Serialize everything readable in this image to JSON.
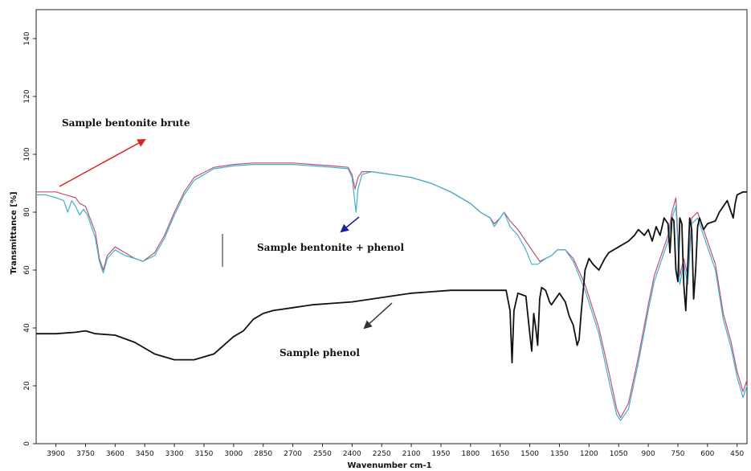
{
  "chart_data": {
    "type": "line",
    "title": "",
    "xlabel": "Wavenumber cm-1",
    "ylabel": "Transmittance [%]",
    "xlim": [
      4000,
      400
    ],
    "ylim": [
      0,
      150
    ],
    "x_ticks": [
      3900,
      3750,
      3600,
      3450,
      3300,
      3150,
      3000,
      2850,
      2700,
      2550,
      2400,
      2250,
      2100,
      1950,
      1800,
      1650,
      1500,
      1350,
      1200,
      1050,
      900,
      750,
      600,
      450
    ],
    "y_ticks": [
      0,
      20,
      40,
      60,
      80,
      100,
      120,
      140
    ],
    "grid": false,
    "series": [
      {
        "name": "Sample bentonite brute",
        "color": "#c0507a",
        "points": [
          [
            4000,
            87
          ],
          [
            3950,
            87
          ],
          [
            3900,
            87
          ],
          [
            3850,
            86
          ],
          [
            3800,
            85
          ],
          [
            3780,
            83
          ],
          [
            3750,
            82
          ],
          [
            3700,
            73
          ],
          [
            3680,
            64
          ],
          [
            3660,
            60
          ],
          [
            3640,
            65
          ],
          [
            3600,
            68
          ],
          [
            3550,
            66
          ],
          [
            3500,
            64
          ],
          [
            3460,
            63
          ],
          [
            3400,
            66
          ],
          [
            3350,
            72
          ],
          [
            3300,
            80
          ],
          [
            3250,
            87
          ],
          [
            3200,
            92
          ],
          [
            3100,
            95.5
          ],
          [
            3000,
            96.5
          ],
          [
            2900,
            97
          ],
          [
            2800,
            97
          ],
          [
            2700,
            97
          ],
          [
            2600,
            96.5
          ],
          [
            2500,
            96
          ],
          [
            2420,
            95.5
          ],
          [
            2400,
            93
          ],
          [
            2385,
            88
          ],
          [
            2370,
            92
          ],
          [
            2350,
            94
          ],
          [
            2300,
            94
          ],
          [
            2200,
            93
          ],
          [
            2100,
            92
          ],
          [
            2000,
            90
          ],
          [
            1900,
            87
          ],
          [
            1800,
            83
          ],
          [
            1750,
            80
          ],
          [
            1700,
            78
          ],
          [
            1680,
            76
          ],
          [
            1650,
            78
          ],
          [
            1630,
            80
          ],
          [
            1600,
            77
          ],
          [
            1560,
            74
          ],
          [
            1520,
            70
          ],
          [
            1480,
            66
          ],
          [
            1450,
            63
          ],
          [
            1420,
            64
          ],
          [
            1390,
            65
          ],
          [
            1360,
            67
          ],
          [
            1320,
            67
          ],
          [
            1280,
            64
          ],
          [
            1220,
            55
          ],
          [
            1150,
            40
          ],
          [
            1100,
            25
          ],
          [
            1060,
            12
          ],
          [
            1040,
            9
          ],
          [
            1000,
            14
          ],
          [
            950,
            30
          ],
          [
            900,
            48
          ],
          [
            870,
            58
          ],
          [
            840,
            64
          ],
          [
            800,
            72
          ],
          [
            780,
            80
          ],
          [
            760,
            85
          ],
          [
            740,
            58
          ],
          [
            720,
            64
          ],
          [
            700,
            58
          ],
          [
            680,
            78
          ],
          [
            650,
            80
          ],
          [
            620,
            74
          ],
          [
            600,
            70
          ],
          [
            560,
            62
          ],
          [
            520,
            45
          ],
          [
            480,
            35
          ],
          [
            450,
            25
          ],
          [
            420,
            18
          ],
          [
            400,
            22
          ]
        ]
      },
      {
        "name": "Sample bentonite + phenol",
        "color": "#40b0d0",
        "points": [
          [
            4000,
            86
          ],
          [
            3950,
            86
          ],
          [
            3900,
            85
          ],
          [
            3860,
            84
          ],
          [
            3840,
            80
          ],
          [
            3820,
            84
          ],
          [
            3800,
            82
          ],
          [
            3780,
            79
          ],
          [
            3760,
            81
          ],
          [
            3740,
            79
          ],
          [
            3700,
            71
          ],
          [
            3680,
            63
          ],
          [
            3660,
            59
          ],
          [
            3640,
            64
          ],
          [
            3600,
            67
          ],
          [
            3550,
            65
          ],
          [
            3500,
            64
          ],
          [
            3460,
            63
          ],
          [
            3400,
            65
          ],
          [
            3350,
            71
          ],
          [
            3300,
            79
          ],
          [
            3250,
            86
          ],
          [
            3200,
            91
          ],
          [
            3100,
            95
          ],
          [
            3000,
            96
          ],
          [
            2900,
            96.5
          ],
          [
            2800,
            96.5
          ],
          [
            2700,
            96.5
          ],
          [
            2600,
            96
          ],
          [
            2500,
            95.5
          ],
          [
            2420,
            95
          ],
          [
            2400,
            92
          ],
          [
            2390,
            86
          ],
          [
            2380,
            80
          ],
          [
            2370,
            88
          ],
          [
            2350,
            93
          ],
          [
            2300,
            94
          ],
          [
            2200,
            93
          ],
          [
            2100,
            92
          ],
          [
            2000,
            90
          ],
          [
            1900,
            87
          ],
          [
            1800,
            83
          ],
          [
            1750,
            80
          ],
          [
            1700,
            78
          ],
          [
            1680,
            75
          ],
          [
            1650,
            78
          ],
          [
            1630,
            80
          ],
          [
            1600,
            75
          ],
          [
            1560,
            72
          ],
          [
            1520,
            67
          ],
          [
            1490,
            62
          ],
          [
            1460,
            62
          ],
          [
            1420,
            64
          ],
          [
            1390,
            65
          ],
          [
            1360,
            67
          ],
          [
            1320,
            67
          ],
          [
            1280,
            63
          ],
          [
            1220,
            53
          ],
          [
            1150,
            38
          ],
          [
            1100,
            22
          ],
          [
            1060,
            10
          ],
          [
            1040,
            8
          ],
          [
            1000,
            12
          ],
          [
            950,
            28
          ],
          [
            900,
            46
          ],
          [
            870,
            56
          ],
          [
            840,
            62
          ],
          [
            800,
            70
          ],
          [
            780,
            78
          ],
          [
            760,
            82
          ],
          [
            740,
            55
          ],
          [
            720,
            62
          ],
          [
            700,
            55
          ],
          [
            680,
            76
          ],
          [
            650,
            78
          ],
          [
            620,
            72
          ],
          [
            600,
            68
          ],
          [
            560,
            60
          ],
          [
            520,
            43
          ],
          [
            480,
            33
          ],
          [
            450,
            23
          ],
          [
            420,
            16
          ],
          [
            400,
            20
          ]
        ]
      },
      {
        "name": "Sample phenol",
        "color": "#111111",
        "points": [
          [
            4000,
            38
          ],
          [
            3900,
            38
          ],
          [
            3800,
            38.5
          ],
          [
            3750,
            39
          ],
          [
            3700,
            38
          ],
          [
            3600,
            37.5
          ],
          [
            3500,
            35
          ],
          [
            3400,
            31
          ],
          [
            3300,
            29
          ],
          [
            3200,
            29
          ],
          [
            3100,
            31
          ],
          [
            3000,
            37
          ],
          [
            2950,
            39
          ],
          [
            2900,
            43
          ],
          [
            2850,
            45
          ],
          [
            2800,
            46
          ],
          [
            2700,
            47
          ],
          [
            2600,
            48
          ],
          [
            2500,
            48.5
          ],
          [
            2400,
            49
          ],
          [
            2300,
            50
          ],
          [
            2200,
            51
          ],
          [
            2100,
            52
          ],
          [
            2000,
            52.5
          ],
          [
            1900,
            53
          ],
          [
            1800,
            53
          ],
          [
            1700,
            53
          ],
          [
            1620,
            53
          ],
          [
            1600,
            46
          ],
          [
            1590,
            28
          ],
          [
            1580,
            46
          ],
          [
            1560,
            52
          ],
          [
            1520,
            51
          ],
          [
            1500,
            38
          ],
          [
            1490,
            32
          ],
          [
            1480,
            45
          ],
          [
            1470,
            40
          ],
          [
            1460,
            34
          ],
          [
            1450,
            50
          ],
          [
            1440,
            54
          ],
          [
            1420,
            53
          ],
          [
            1400,
            49
          ],
          [
            1390,
            48
          ],
          [
            1370,
            50
          ],
          [
            1350,
            52
          ],
          [
            1320,
            49
          ],
          [
            1300,
            44
          ],
          [
            1280,
            41
          ],
          [
            1260,
            34
          ],
          [
            1250,
            36
          ],
          [
            1240,
            45
          ],
          [
            1220,
            60
          ],
          [
            1200,
            64
          ],
          [
            1180,
            62
          ],
          [
            1150,
            60
          ],
          [
            1120,
            64
          ],
          [
            1100,
            66
          ],
          [
            1050,
            68
          ],
          [
            1000,
            70
          ],
          [
            970,
            72
          ],
          [
            950,
            74
          ],
          [
            920,
            72
          ],
          [
            900,
            74
          ],
          [
            880,
            70
          ],
          [
            860,
            75
          ],
          [
            840,
            72
          ],
          [
            820,
            78
          ],
          [
            800,
            76
          ],
          [
            790,
            66
          ],
          [
            780,
            78
          ],
          [
            770,
            77
          ],
          [
            760,
            60
          ],
          [
            750,
            56
          ],
          [
            740,
            78
          ],
          [
            730,
            76
          ],
          [
            720,
            55
          ],
          [
            710,
            46
          ],
          [
            700,
            62
          ],
          [
            690,
            78
          ],
          [
            680,
            74
          ],
          [
            670,
            50
          ],
          [
            660,
            60
          ],
          [
            650,
            75
          ],
          [
            640,
            78
          ],
          [
            620,
            74
          ],
          [
            600,
            76
          ],
          [
            560,
            77
          ],
          [
            540,
            80
          ],
          [
            520,
            82
          ],
          [
            500,
            84
          ],
          [
            480,
            80
          ],
          [
            470,
            78
          ],
          [
            460,
            83
          ],
          [
            450,
            86
          ],
          [
            420,
            87
          ],
          [
            400,
            87
          ]
        ]
      }
    ],
    "annotations": [
      {
        "text": "Sample bentonite brute",
        "arrow_color": "#e02020"
      },
      {
        "text": "Sample bentonite + phenol",
        "arrow_color": "#20209a"
      },
      {
        "text": "Sample phenol",
        "arrow_color": "#333333"
      }
    ]
  }
}
